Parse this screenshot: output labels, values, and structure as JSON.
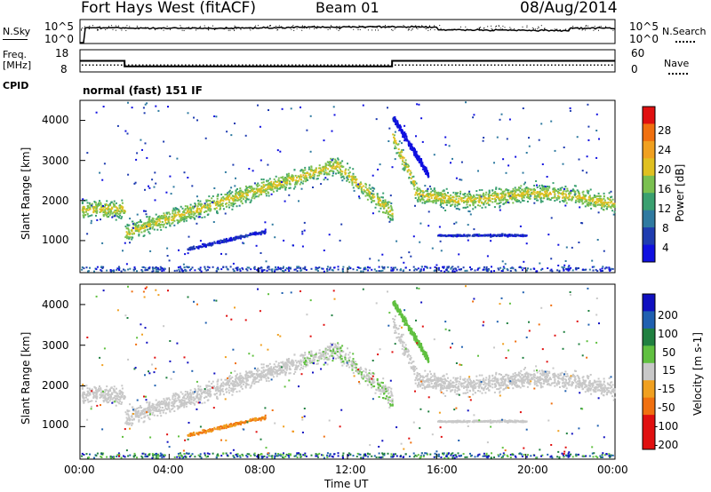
{
  "header": {
    "station": "Fort Hays West (fitACF)",
    "beam": "Beam 01",
    "date": "08/Aug/2014"
  },
  "side_labels": {
    "nsky": "N.Sky",
    "nsearch": "N.Search",
    "freq": "Freq.",
    "freq_unit": "[MHz]",
    "nave": "Nave",
    "cpid": "CPID",
    "cpid_value": "normal (fast) 151 IF"
  },
  "chart_data": [
    {
      "type": "line",
      "panel": "noise",
      "left_ticks": [
        "10^5",
        "10^0"
      ],
      "right_ticks": [
        "10^5",
        "10^0"
      ],
      "series": [
        {
          "name": "N.Sky"
        },
        {
          "name": "N.Search"
        }
      ]
    },
    {
      "type": "line",
      "panel": "freq-nave",
      "left_ticks": [
        "18",
        "8"
      ],
      "right_ticks": [
        "60",
        "0"
      ],
      "freq_steps": [
        {
          "t": 0.0,
          "value": 13
        },
        {
          "t": 2.0,
          "value": 10.5
        },
        {
          "t": 14.0,
          "value": 13
        }
      ],
      "nave_level": 8
    },
    {
      "type": "heatmap",
      "panel": "power",
      "ylabel": "Slant Range [km]",
      "y_ticks": [
        "1000",
        "2000",
        "3000",
        "4000"
      ],
      "ylim": [
        200,
        4500
      ],
      "xlim": [
        0,
        24
      ],
      "colorbar": {
        "label": "Power [dB]",
        "ticks": [
          "4",
          "8",
          "12",
          "16",
          "20",
          "24",
          "28"
        ],
        "colors": [
          "#1010e0",
          "#1f3cb0",
          "#2f7aa0",
          "#3aa070",
          "#7ac050",
          "#e0c020",
          "#f0a020",
          "#f07010",
          "#e01010"
        ]
      }
    },
    {
      "type": "heatmap",
      "panel": "velocity",
      "ylabel": "Slant Range [km]",
      "y_ticks": [
        "1000",
        "2000",
        "3000",
        "4000"
      ],
      "ylim": [
        200,
        4500
      ],
      "xlim": [
        0,
        24
      ],
      "xlabel": "Time UT",
      "x_ticks": [
        "00:00",
        "04:00",
        "08:00",
        "12:00",
        "16:00",
        "20:00",
        "00:00"
      ],
      "colorbar": {
        "label": "Velocity [m s-1]",
        "ticks": [
          "200",
          "100",
          "50",
          "15",
          "-15",
          "-50",
          "-100",
          "-200"
        ],
        "colors": [
          "#1010c0",
          "#2060b0",
          "#208040",
          "#60c040",
          "#c8c8c8",
          "#f0a020",
          "#f07010",
          "#e01010",
          "#e01010"
        ]
      }
    }
  ]
}
